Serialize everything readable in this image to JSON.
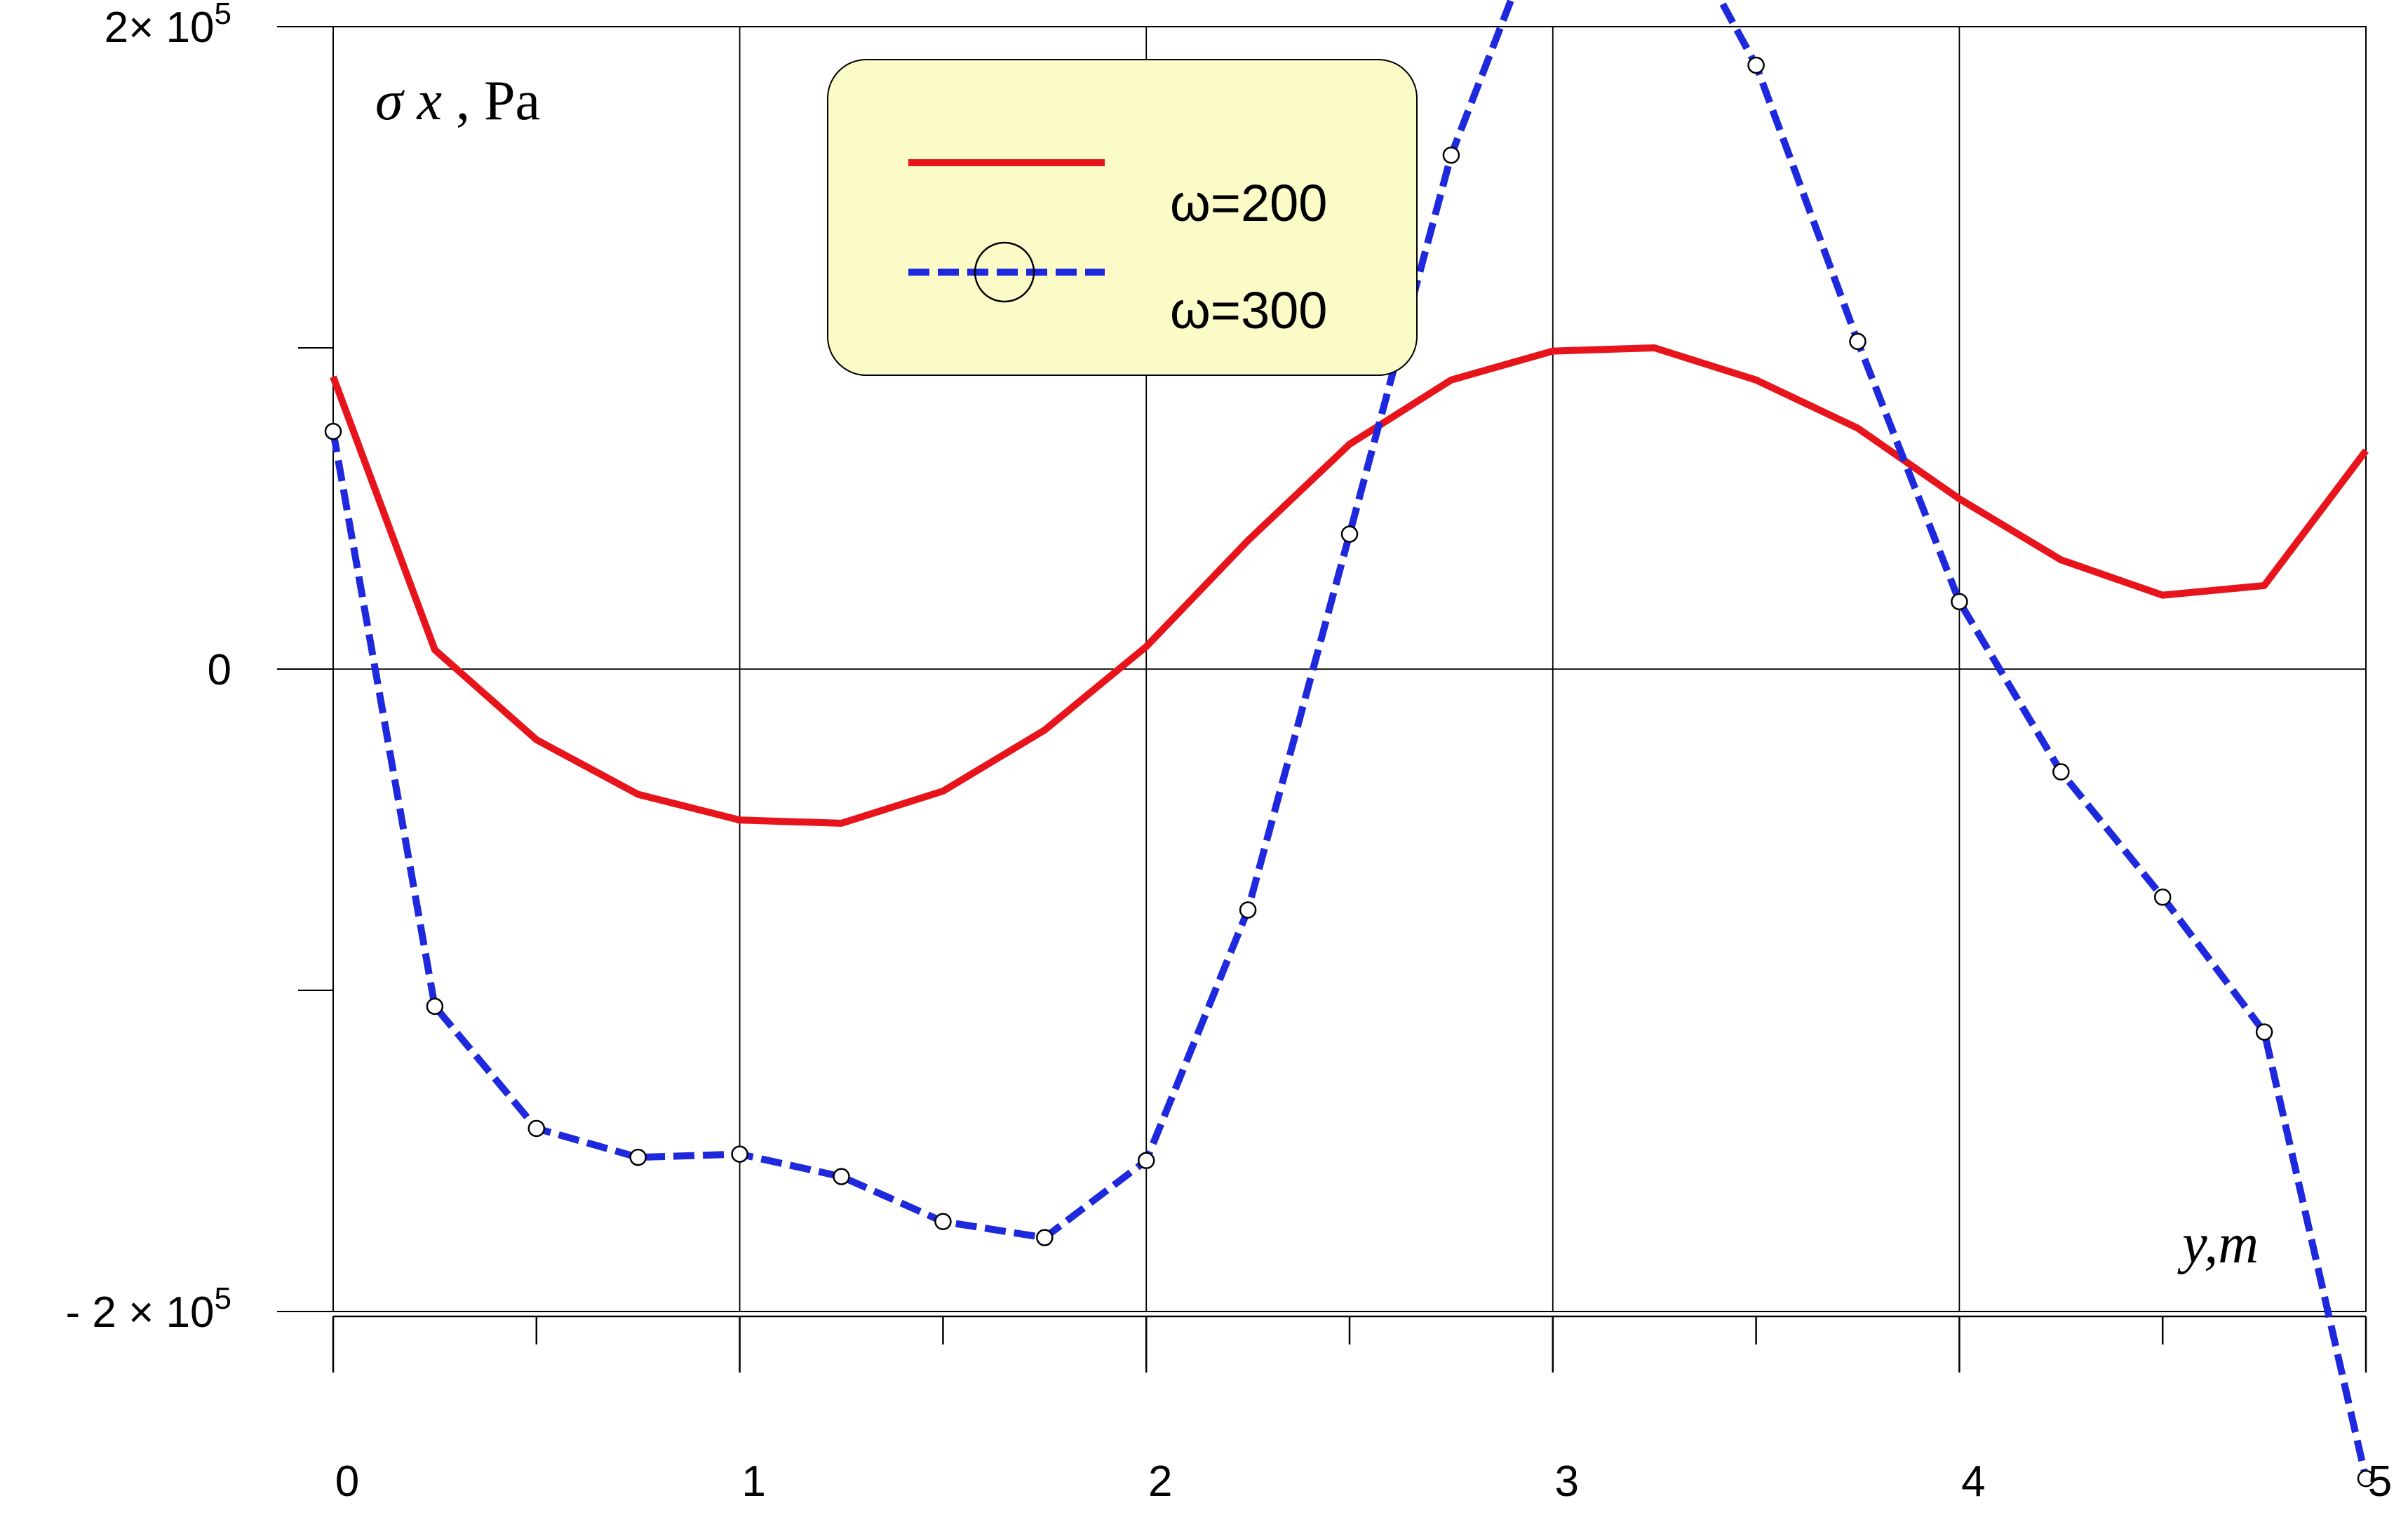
{
  "chart_data": {
    "type": "line",
    "title": "",
    "ylabel": {
      "symbol": "σ",
      "sub": "x",
      "unit": ", Pa"
    },
    "xlabel": "y,m",
    "xlim": [
      0,
      5
    ],
    "ylim": [
      -200000,
      200000
    ],
    "x_ticks": [
      {
        "value": 0,
        "label": "0"
      },
      {
        "value": 1,
        "label": "1"
      },
      {
        "value": 2,
        "label": "2"
      },
      {
        "value": 3,
        "label": "3"
      },
      {
        "value": 4,
        "label": "4"
      },
      {
        "value": 5,
        "label": "5"
      }
    ],
    "y_ticks": [
      {
        "value": 200000,
        "base": "2× 10",
        "exp": "5"
      },
      {
        "value": 0,
        "base": "0",
        "exp": ""
      },
      {
        "value": -200000,
        "base": "- 2 × 10",
        "exp": "5"
      }
    ],
    "y_minor_ticks": [
      100000,
      -100000
    ],
    "x_minor_ticks": [
      0.5,
      1.5,
      2.5,
      3.5,
      4.5
    ],
    "grid": true,
    "legend_position": "top-center",
    "series": [
      {
        "name": "ω=200",
        "color": "#e8141c",
        "style": "solid",
        "marker": "none",
        "x": [
          0,
          0.25,
          0.5,
          0.75,
          1.0,
          1.25,
          1.5,
          1.75,
          2.0,
          2.25,
          2.5,
          2.75,
          3.0,
          3.25,
          3.5,
          3.75,
          4.0,
          4.25,
          4.5,
          4.75,
          5.0
        ],
        "values": [
          91000,
          6000,
          -22000,
          -39000,
          -47000,
          -48000,
          -38000,
          -19000,
          7000,
          40000,
          70000,
          90000,
          99000,
          100000,
          90000,
          75000,
          53000,
          34000,
          23000,
          26000,
          68000
        ]
      },
      {
        "name": "ω=300",
        "color": "#1e28dc",
        "style": "dashed",
        "marker": "circle",
        "x": [
          0,
          0.25,
          0.5,
          0.75,
          1.0,
          1.25,
          1.5,
          1.75,
          2.0,
          2.25,
          2.5,
          2.75,
          3.0,
          3.25,
          3.5,
          3.75,
          4.0,
          4.25,
          4.5,
          4.75,
          5.0
        ],
        "values": [
          74000,
          -105000,
          -143000,
          -152000,
          -151000,
          -158000,
          -172000,
          -177000,
          -153000,
          -75000,
          42000,
          160000,
          242000,
          246000,
          188000,
          102000,
          21000,
          -32000,
          -71000,
          -113000,
          -252000
        ]
      }
    ]
  }
}
